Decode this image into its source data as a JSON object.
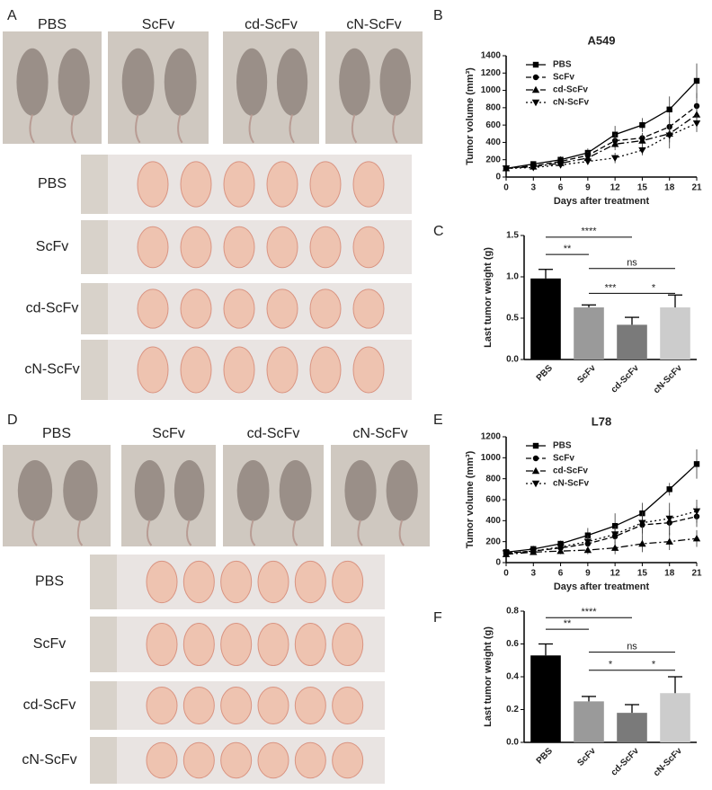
{
  "photo_panels": [
    {
      "label": "A",
      "mice": [
        "PBS",
        "ScFv",
        "cd-ScFv",
        "cN-ScFv"
      ],
      "tumors": [
        "PBS",
        "ScFv",
        "cd-ScFv",
        "cN-ScFv"
      ]
    },
    {
      "label": "D",
      "mice": [
        "PBS",
        "ScFv",
        "cd-ScFv",
        "cN-ScFv"
      ],
      "tumors": [
        "PBS",
        "ScFv",
        "cd-ScFv",
        "cN-ScFv"
      ]
    }
  ],
  "chart_data": [
    {
      "type": "line",
      "panel": "B",
      "title": "A549",
      "x_label": "Days after treatment",
      "y_label": "Tumor volume (mm³)",
      "x": [
        0,
        3,
        6,
        9,
        12,
        15,
        18,
        21
      ],
      "xlim": [
        0,
        21
      ],
      "xticks": [
        0,
        3,
        6,
        9,
        12,
        15,
        18,
        21
      ],
      "ylim": [
        0,
        1400
      ],
      "yticks": [
        0,
        200,
        400,
        600,
        800,
        1000,
        1200,
        1400
      ],
      "series": [
        {
          "name": "PBS",
          "color": "#000000",
          "dash": "none",
          "marker": "square",
          "values": [
            100,
            150,
            200,
            280,
            490,
            600,
            780,
            1110
          ],
          "errors": [
            20,
            30,
            40,
            50,
            100,
            80,
            150,
            200
          ]
        },
        {
          "name": "ScFv",
          "color": "#000000",
          "dash": "6,3",
          "marker": "circle",
          "values": [
            100,
            130,
            180,
            250,
            420,
            450,
            580,
            820
          ],
          "errors": [
            15,
            20,
            30,
            40,
            80,
            60,
            120,
            150
          ]
        },
        {
          "name": "cd-ScFv",
          "color": "#000000",
          "dash": "8,3,2,3",
          "marker": "triangle",
          "values": [
            100,
            120,
            160,
            220,
            380,
            420,
            500,
            720
          ],
          "errors": [
            15,
            20,
            25,
            40,
            70,
            60,
            100,
            120
          ]
        },
        {
          "name": "cN-ScFv",
          "color": "#000000",
          "dash": "2,3",
          "marker": "triangle-down",
          "values": [
            100,
            110,
            140,
            180,
            220,
            310,
            480,
            620
          ],
          "errors": [
            15,
            20,
            25,
            30,
            60,
            60,
            150,
            100
          ]
        }
      ]
    },
    {
      "type": "bar",
      "panel": "C",
      "y_label": "Last tumor weight (g)",
      "categories": [
        "PBS",
        "ScFv",
        "cd-ScFv",
        "cN-ScFv"
      ],
      "values": [
        0.98,
        0.63,
        0.42,
        0.63
      ],
      "errors": [
        0.11,
        0.03,
        0.09,
        0.15
      ],
      "colors": [
        "#000000",
        "#9a9a9a",
        "#7a7a7a",
        "#cccccc"
      ],
      "ylim": [
        0,
        1.5
      ],
      "yticks": [
        {
          "value": 0,
          "label": "0.0"
        },
        0.5,
        {
          "value": 1,
          "label": "1.0"
        },
        1.5
      ],
      "annotations": [
        {
          "from": 0,
          "to": 2,
          "label": "****",
          "y": 1.48
        },
        {
          "from": 0,
          "to": 1,
          "label": "**",
          "y": 1.27
        },
        {
          "from": 1,
          "to": 3,
          "label": "ns",
          "y": 1.1
        },
        {
          "from": 1,
          "to": 2,
          "label": "***",
          "y": 0.8
        },
        {
          "from": 2,
          "to": 3,
          "label": "*",
          "y": 0.8
        }
      ]
    },
    {
      "type": "line",
      "panel": "E",
      "title": "L78",
      "x_label": "Days after treatment",
      "y_label": "Tumor volume (mm³)",
      "x": [
        0,
        3,
        6,
        9,
        12,
        15,
        18,
        21
      ],
      "xlim": [
        0,
        21
      ],
      "xticks": [
        0,
        3,
        6,
        9,
        12,
        15,
        18,
        21
      ],
      "ylim": [
        0,
        1200
      ],
      "yticks": [
        0,
        200,
        400,
        600,
        800,
        1000,
        1200
      ],
      "series": [
        {
          "name": "PBS",
          "color": "#000000",
          "dash": "none",
          "marker": "square",
          "values": [
            100,
            130,
            180,
            260,
            350,
            470,
            700,
            940
          ],
          "errors": [
            20,
            30,
            30,
            70,
            120,
            100,
            60,
            140
          ]
        },
        {
          "name": "ScFv",
          "color": "#000000",
          "dash": "6,3",
          "marker": "circle",
          "values": [
            90,
            110,
            140,
            180,
            250,
            360,
            380,
            440
          ],
          "errors": [
            20,
            20,
            30,
            50,
            80,
            100,
            120,
            100
          ]
        },
        {
          "name": "cd-ScFv",
          "color": "#000000",
          "dash": "8,3,2,3",
          "marker": "triangle",
          "values": [
            80,
            100,
            110,
            120,
            140,
            180,
            200,
            230
          ],
          "errors": [
            20,
            20,
            30,
            40,
            60,
            80,
            80,
            80
          ]
        },
        {
          "name": "cN-ScFv",
          "color": "#000000",
          "dash": "2,3",
          "marker": "triangle-down",
          "values": [
            90,
            110,
            150,
            200,
            270,
            380,
            420,
            490
          ],
          "errors": [
            20,
            20,
            30,
            60,
            80,
            100,
            150,
            110
          ]
        }
      ]
    },
    {
      "type": "bar",
      "panel": "F",
      "y_label": "Last tumor weight (g)",
      "categories": [
        "PBS",
        "ScFv",
        "cd-ScFv",
        "cN-ScFv"
      ],
      "values": [
        0.53,
        0.25,
        0.18,
        0.3
      ],
      "errors": [
        0.07,
        0.03,
        0.05,
        0.1
      ],
      "colors": [
        "#000000",
        "#9a9a9a",
        "#7a7a7a",
        "#cccccc"
      ],
      "ylim": [
        0,
        0.8
      ],
      "yticks": [
        {
          "value": 0,
          "label": "0.0"
        },
        0.2,
        0.4,
        0.6,
        0.8
      ],
      "annotations": [
        {
          "from": 0,
          "to": 2,
          "label": "****",
          "y": 0.76
        },
        {
          "from": 0,
          "to": 1,
          "label": "**",
          "y": 0.69
        },
        {
          "from": 1,
          "to": 3,
          "label": "ns",
          "y": 0.55
        },
        {
          "from": 1,
          "to": 2,
          "label": "*",
          "y": 0.44
        },
        {
          "from": 2,
          "to": 3,
          "label": "*",
          "y": 0.44
        }
      ]
    }
  ]
}
